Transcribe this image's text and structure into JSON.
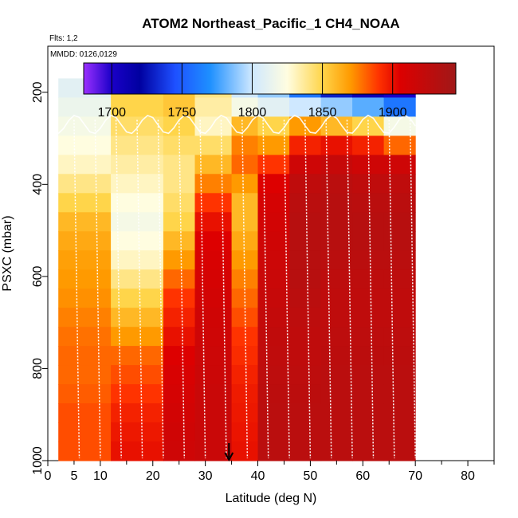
{
  "chart_data": {
    "type": "heatmap",
    "title": "ATOM2 Northeast_Pacific_1 CH4_NOAA",
    "flights_label": "Flts: 1,2",
    "dates_label": "MMDD: 0126,0129",
    "xlabel": "Latitude (deg N)",
    "ylabel": "PSXC (mbar)",
    "xlim": [
      0,
      85
    ],
    "ylim": [
      1000,
      100
    ],
    "x_ticks": [
      0,
      5,
      10,
      20,
      30,
      40,
      50,
      60,
      70,
      80
    ],
    "y_ticks": [
      200,
      400,
      600,
      800,
      1000
    ],
    "colorbar": {
      "range": [
        1680,
        1945
      ],
      "ticks": [
        1700,
        1750,
        1800,
        1850,
        1900
      ],
      "color_stops": [
        [
          1680,
          "#9b30ff"
        ],
        [
          1700,
          "#1a00c8"
        ],
        [
          1720,
          "#0000a0"
        ],
        [
          1745,
          "#1e50ff"
        ],
        [
          1770,
          "#1e90ff"
        ],
        [
          1800,
          "#cfe8ff"
        ],
        [
          1825,
          "#fffde0"
        ],
        [
          1850,
          "#ffd54a"
        ],
        [
          1870,
          "#ff9a00"
        ],
        [
          1890,
          "#ff3300"
        ],
        [
          1905,
          "#dd0000"
        ],
        [
          1945,
          "#a01818"
        ]
      ]
    },
    "marker": {
      "latitude": 34.5,
      "pressure": 1000
    },
    "profiles": [
      {
        "lat": [
          2,
          12
        ],
        "values": [
          1810,
          1815,
          1820,
          1825,
          1830,
          1840,
          1850,
          1860,
          1865,
          1868,
          1870,
          1872,
          1875,
          1878,
          1880,
          1880,
          1882,
          1885,
          1885,
          1885
        ]
      },
      {
        "lat": [
          12,
          22
        ],
        "values": [
          1850,
          1850,
          1845,
          1840,
          1835,
          1830,
          1825,
          1820,
          1825,
          1830,
          1840,
          1850,
          1860,
          1870,
          1880,
          1885,
          1890,
          1895,
          1898,
          1900
        ]
      },
      {
        "lat": [
          22,
          28
        ],
        "values": [
          1855,
          1855,
          1850,
          1845,
          1840,
          1840,
          1845,
          1850,
          1860,
          1870,
          1880,
          1890,
          1895,
          1900,
          1905,
          1908,
          1910,
          1912,
          1914,
          1915
        ]
      },
      {
        "lat": [
          28,
          35
        ],
        "values": [
          1840,
          1835,
          1830,
          1845,
          1860,
          1875,
          1890,
          1900,
          1905,
          1908,
          1910,
          1912,
          1914,
          1915,
          1916,
          1917,
          1918,
          1918,
          1918,
          1918
        ]
      },
      {
        "lat": [
          35,
          40
        ],
        "values": [
          1800,
          1820,
          1860,
          1875,
          1880,
          1870,
          1860,
          1860,
          1865,
          1870,
          1875,
          1880,
          1885,
          1890,
          1892,
          1895,
          1897,
          1898,
          1899,
          1900
        ]
      },
      {
        "lat": [
          40,
          46
        ],
        "values": [
          1790,
          1810,
          1850,
          1870,
          1890,
          1905,
          1910,
          1912,
          1914,
          1916,
          1918,
          1920,
          1922,
          1924,
          1925,
          1926,
          1927,
          1928,
          1928,
          1928
        ]
      },
      {
        "lat": [
          46,
          52
        ],
        "values": [
          1760,
          1800,
          1870,
          1895,
          1915,
          1925,
          1928,
          1930,
          1930,
          1930,
          1930,
          1928,
          1926,
          1925,
          1925,
          1926,
          1927,
          1928,
          1928,
          1928
        ]
      },
      {
        "lat": [
          52,
          58
        ],
        "values": [
          1730,
          1790,
          1860,
          1900,
          1920,
          1928,
          1930,
          1930,
          1930,
          1928,
          1926,
          1925,
          1925,
          1926,
          1927,
          1928,
          1928,
          1928,
          1928,
          1928
        ]
      },
      {
        "lat": [
          58,
          64
        ],
        "values": [
          1710,
          1780,
          1850,
          1895,
          1915,
          1925,
          1928,
          1930,
          1930,
          1928,
          1926,
          1925,
          1925,
          1926,
          1927,
          1928,
          1928,
          1928,
          1928,
          1928
        ]
      },
      {
        "lat": [
          64,
          70
        ],
        "values": [
          1700,
          1760,
          1820,
          1880,
          1915,
          1925,
          1928,
          1930,
          1930,
          1928,
          1926,
          1925,
          1925,
          1926,
          1927,
          1928,
          1928,
          1928,
          1928,
          1928
        ]
      }
    ]
  }
}
